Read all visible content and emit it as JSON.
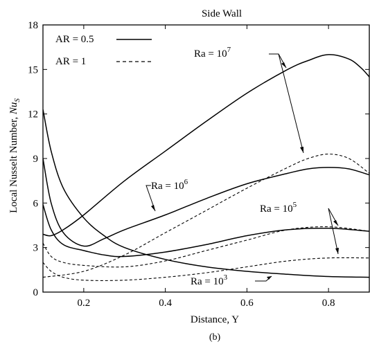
{
  "chart_data": {
    "type": "line",
    "title": "Side Wall",
    "xlabel": "Distance, Y",
    "ylabel_main": "Local Nusselt Number, ",
    "ylabel_sym": "Nu",
    "ylabel_sub": "S",
    "subcaption": "(b)",
    "xlim": [
      0.1,
      0.9
    ],
    "ylim": [
      0,
      18
    ],
    "xticks": [
      0.2,
      0.4,
      0.6,
      0.8
    ],
    "xtick_labels": [
      "0.2",
      "0.4",
      "0.6",
      "0.8"
    ],
    "yticks": [
      0,
      3,
      6,
      9,
      12,
      15,
      18
    ],
    "ytick_labels": [
      "0",
      "3",
      "6",
      "9",
      "12",
      "15",
      "18"
    ],
    "grid": false,
    "legend": {
      "placement": "top-left",
      "entries": [
        {
          "label": "AR = 0.5",
          "style": "solid"
        },
        {
          "label": "AR = 1",
          "style": "dashed"
        }
      ]
    },
    "annotations": [
      {
        "base": "Ra = 10",
        "exp": "7"
      },
      {
        "base": "Ra = 10",
        "exp": "6"
      },
      {
        "base": "Ra = 10",
        "exp": "5"
      },
      {
        "base": "Ra = 10",
        "exp": "3"
      }
    ],
    "series": [
      {
        "ra": "1e7",
        "ar": "0.5",
        "style": "solid",
        "x": [
          0.1,
          0.12,
          0.15,
          0.2,
          0.3,
          0.4,
          0.5,
          0.6,
          0.7,
          0.75,
          0.8,
          0.85,
          0.88,
          0.9
        ],
        "y": [
          3.9,
          3.8,
          4.2,
          5.2,
          7.5,
          9.5,
          11.5,
          13.4,
          15.0,
          15.6,
          16.0,
          15.7,
          15.1,
          14.5
        ]
      },
      {
        "ra": "1e7",
        "ar": "1",
        "style": "dashed",
        "x": [
          0.1,
          0.2,
          0.3,
          0.4,
          0.5,
          0.6,
          0.7,
          0.75,
          0.8,
          0.85,
          0.9
        ],
        "y": [
          1.0,
          1.4,
          2.5,
          4.0,
          5.5,
          7.0,
          8.4,
          9.0,
          9.3,
          9.0,
          8.0
        ]
      },
      {
        "ra": "1e6",
        "ar": "0.5",
        "style": "solid",
        "x": [
          0.1,
          0.12,
          0.15,
          0.2,
          0.25,
          0.3,
          0.4,
          0.5,
          0.6,
          0.7,
          0.75,
          0.8,
          0.85,
          0.9
        ],
        "y": [
          9.0,
          6.0,
          4.0,
          3.1,
          3.6,
          4.2,
          5.2,
          6.3,
          7.3,
          8.0,
          8.3,
          8.4,
          8.3,
          7.9
        ]
      },
      {
        "ra": "1e6",
        "ar": "1",
        "style": "dashed",
        "x": [
          0.1,
          0.12,
          0.15,
          0.2,
          0.3,
          0.4,
          0.5,
          0.6,
          0.7,
          0.8,
          0.9
        ],
        "y": [
          3.3,
          2.4,
          2.0,
          1.8,
          1.7,
          2.1,
          2.8,
          3.5,
          4.2,
          4.4,
          4.1
        ]
      },
      {
        "ra": "1e5",
        "ar": "0.5",
        "style": "solid",
        "x": [
          0.1,
          0.12,
          0.15,
          0.2,
          0.25,
          0.3,
          0.4,
          0.5,
          0.6,
          0.7,
          0.8,
          0.9
        ],
        "y": [
          5.9,
          4.2,
          3.2,
          2.8,
          2.5,
          2.4,
          2.7,
          3.2,
          3.8,
          4.2,
          4.3,
          4.1
        ]
      },
      {
        "ra": "1e5",
        "ar": "1",
        "style": "dashed",
        "x": [
          0.1,
          0.12,
          0.15,
          0.2,
          0.3,
          0.4,
          0.5,
          0.6,
          0.7,
          0.8,
          0.9
        ],
        "y": [
          2.0,
          1.4,
          1.0,
          0.8,
          0.8,
          1.0,
          1.3,
          1.7,
          2.1,
          2.3,
          2.3
        ]
      },
      {
        "ra": "1e3",
        "ar": "0.5",
        "style": "solid",
        "x": [
          0.1,
          0.12,
          0.15,
          0.2,
          0.25,
          0.3,
          0.4,
          0.5,
          0.6,
          0.7,
          0.8,
          0.9
        ],
        "y": [
          12.3,
          9.5,
          7.0,
          5.0,
          3.8,
          3.0,
          2.2,
          1.7,
          1.4,
          1.2,
          1.05,
          1.0
        ]
      }
    ]
  }
}
